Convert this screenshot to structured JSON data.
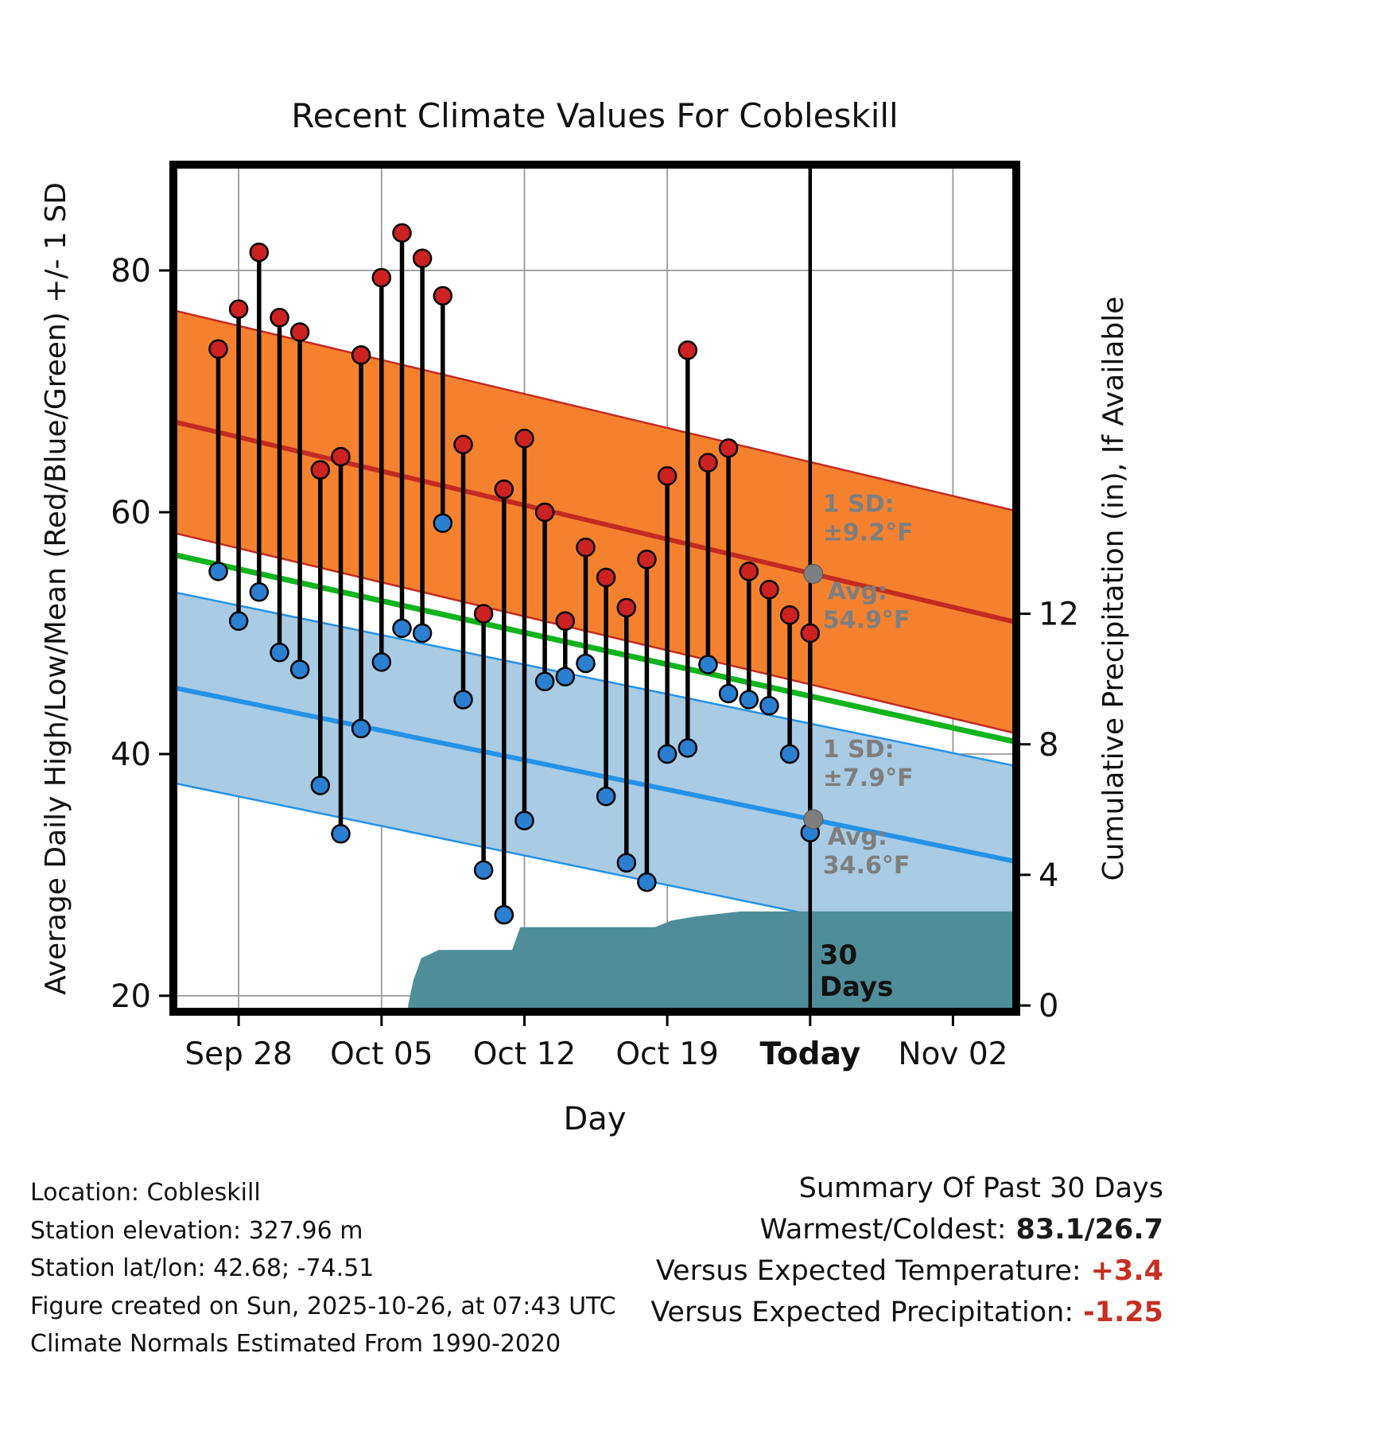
{
  "title": "Recent Climate Values For Cobleskill",
  "axes": {
    "left_label": "Average Daily High/Low/Mean (Red/Blue/Green) +/- 1 SD",
    "right_label": "Cumulative Precipitation (in), If Available",
    "x_label": "Day"
  },
  "footer": {
    "lines": [
      "Location: Cobleskill",
      "Station elevation: 327.96 m",
      "Station lat/lon: 42.68; -74.51",
      "Figure created on Sun, 2025-10-26, at 07:43 UTC",
      "Climate Normals Estimated From 1990-2020"
    ]
  },
  "summary": {
    "title": "Summary Of Past 30 Days",
    "rows": [
      {
        "label": "Warmest/Coldest:",
        "value": "83.1/26.7",
        "value_color": "#1a1a1a"
      },
      {
        "label": "Versus Expected Temperature:",
        "value": "+3.4",
        "value_color": "#c62f22"
      },
      {
        "label": "Versus Expected Precipitation:",
        "value": "-1.25",
        "value_color": "#c62f22"
      }
    ]
  },
  "chart_data": {
    "type": "composite",
    "title": "Recent Climate Values For Cobleskill",
    "xlabel": "Day",
    "ylabel": "Average Daily High/Low/Mean (Red/Blue/Green) +/- 1 SD",
    "y2label": "Cumulative Precipitation (in), If Available",
    "x_axis": {
      "domain_days": [
        -3.2,
        38.1
      ],
      "ticks": [
        {
          "day": 0,
          "label": "Sep 28",
          "bold": false
        },
        {
          "day": 7,
          "label": "Oct 05",
          "bold": false
        },
        {
          "day": 14,
          "label": "Oct 12",
          "bold": false
        },
        {
          "day": 21,
          "label": "Oct 19",
          "bold": false
        },
        {
          "day": 28,
          "label": "Today",
          "bold": true
        },
        {
          "day": 35,
          "label": "Nov 02",
          "bold": false
        }
      ]
    },
    "temp_axis": {
      "ticks": [
        20,
        40,
        60,
        80
      ],
      "range": [
        18.68,
        88.75
      ]
    },
    "precip_axis": {
      "ticks": [
        0,
        4,
        8,
        12
      ],
      "zero_temp_equiv": 19.2,
      "temp_per_inch": 2.7
    },
    "climatology": {
      "high": {
        "start": 67.5,
        "end": 50.9,
        "sd": 9.2,
        "line_color": "#c32a22",
        "band_color": "#f5812f"
      },
      "low": {
        "start": 45.5,
        "end": 31.1,
        "sd": 7.9,
        "line_color": "#2492e8",
        "band_color": "#a9cbe4"
      },
      "mean": {
        "start": 56.5,
        "end": 41.0,
        "line_color": "#10b41c"
      }
    },
    "daily": {
      "start_day": -1,
      "highs": [
        73.5,
        76.8,
        81.5,
        76.1,
        74.9,
        63.5,
        64.6,
        73.0,
        79.4,
        83.1,
        81.0,
        77.9,
        65.6,
        51.6,
        61.9,
        66.1,
        60.0,
        51.0,
        57.1,
        54.6,
        52.1,
        56.1,
        63.0,
        73.4,
        64.1,
        65.3,
        55.1,
        53.6,
        51.5,
        50.0
      ],
      "lows": [
        55.1,
        51.0,
        53.4,
        48.4,
        47.0,
        37.4,
        33.4,
        42.1,
        47.6,
        50.4,
        50.0,
        59.1,
        44.5,
        30.4,
        26.7,
        34.5,
        46.0,
        46.4,
        47.5,
        36.5,
        31.0,
        29.4,
        40.0,
        40.5,
        47.4,
        45.0,
        44.5,
        44.0,
        40.0,
        33.5
      ]
    },
    "precip_cumulative_steps": [
      [
        8.3,
        0
      ],
      [
        8.55,
        0.75
      ],
      [
        8.95,
        1.45
      ],
      [
        9.8,
        1.7
      ],
      [
        13.4,
        1.7
      ],
      [
        13.8,
        2.4
      ],
      [
        20.4,
        2.4
      ],
      [
        21.2,
        2.6
      ],
      [
        22.3,
        2.72
      ],
      [
        23.4,
        2.8
      ],
      [
        24.6,
        2.88
      ],
      [
        38.1,
        2.88
      ]
    ],
    "today_day": 28,
    "annotations": {
      "high": {
        "sd_label": "1 SD:",
        "sd_value": "±9.2°F",
        "avg_label": "Avg:",
        "avg_value": "54.9°F",
        "avg_temp": 54.9
      },
      "low": {
        "sd_label": "1 SD:",
        "sd_value": "±7.9°F",
        "avg_label": "Avg:",
        "avg_value": "34.6°F",
        "avg_temp": 34.6
      },
      "period_lines": [
        "30",
        "Days"
      ]
    },
    "colors": {
      "stem": "#000000",
      "high_dot": "#cc2222",
      "low_dot": "#2b7fd0",
      "precip_fill": "#4f8e99",
      "grid": "#9a9a9a",
      "annotation_gray": "#7e7e7e",
      "frame": "#000000"
    }
  }
}
